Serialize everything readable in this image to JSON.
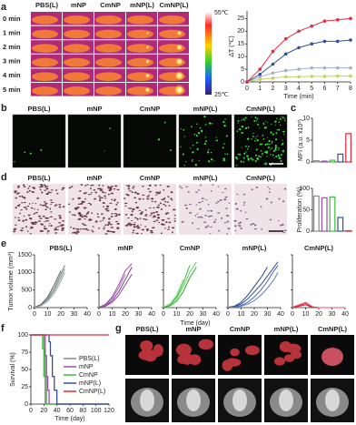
{
  "panel_labels": [
    "a",
    "b",
    "c",
    "d",
    "e",
    "f",
    "g"
  ],
  "groups": [
    {
      "name": "PBS(L)",
      "color": "#8c8c8c"
    },
    {
      "name": "mNP",
      "color": "#9b4fa8"
    },
    {
      "name": "CmNP",
      "color": "#3dbb3d"
    },
    {
      "name": "mNP(L)",
      "color": "#34509a"
    },
    {
      "name": "CmNP(L)",
      "color": "#e8283c"
    }
  ],
  "panel_a": {
    "times": [
      "0 min",
      "1 min",
      "2 min",
      "3 min",
      "4 min",
      "5 min"
    ],
    "scale_max": "55℃",
    "scale_min": "25℃"
  },
  "panel_e": {
    "y_label": "Tumor volume (mm³)",
    "x_label": "Time (day)"
  },
  "chart_data": [
    {
      "type": "line",
      "x_label": "Time (min)",
      "y_label": "ΔT (℃)",
      "markers": true,
      "x": [
        0,
        1,
        2,
        3,
        4,
        5,
        6,
        7,
        8
      ],
      "xlim": [
        0,
        8
      ],
      "xticks": [
        0,
        1,
        2,
        3,
        4,
        5,
        6,
        7,
        8
      ],
      "ylim": [
        0,
        28
      ],
      "yticks": [
        0,
        5,
        10,
        15,
        20,
        25
      ],
      "series": [
        {
          "color": "#9fb0c8",
          "values": [
            0,
            2,
            3.5,
            4.5,
            5,
            5.5,
            5.5,
            5.5,
            5.5
          ]
        },
        {
          "color": "#c8d060",
          "values": [
            0,
            1,
            1.5,
            2,
            2,
            2.2,
            2.2,
            2.3,
            2.3
          ]
        },
        {
          "color": "#34509a",
          "values": [
            0,
            3,
            7,
            11,
            13.5,
            15,
            16,
            16,
            16.5
          ]
        },
        {
          "color": "#e8283c",
          "values": [
            0,
            5,
            12,
            17,
            20,
            22,
            24,
            24.5,
            25
          ]
        }
      ]
    },
    {
      "type": "bar",
      "y_label": "MFI (a.u. x10³)",
      "ylim": [
        0,
        10
      ],
      "yticks": [
        0,
        5,
        10
      ],
      "values": [
        0.3,
        0.2,
        0.4,
        1.8,
        6.5
      ],
      "colors": [
        "#8c8c8c",
        "#9b4fa8",
        "#3dbb3d",
        "#34509a",
        "#e8283c"
      ]
    },
    {
      "type": "bar",
      "y_label": "Proliferation (%)",
      "ylim": [
        0,
        100
      ],
      "yticks": [
        0,
        50,
        100
      ],
      "values": [
        82,
        78,
        80,
        32,
        1
      ],
      "colors": [
        "#8c8c8c",
        "#9b4fa8",
        "#3dbb3d",
        "#34509a",
        "#e8283c"
      ]
    },
    {
      "type": "line",
      "title": "PBS(L)",
      "x": [
        0,
        5,
        10,
        15,
        20,
        23
      ],
      "xlim": [
        0,
        40
      ],
      "xticks": [
        0,
        10,
        20,
        30,
        40
      ],
      "ylim": [
        0,
        1500
      ],
      "yticks": [
        0,
        500,
        1000,
        1500
      ],
      "series": [
        {
          "color": "#6f7f7f",
          "values": [
            10,
            80,
            250,
            550,
            950,
            1200
          ]
        },
        {
          "color": "#8a9898",
          "values": [
            10,
            60,
            200,
            480,
            850,
            1100
          ]
        },
        {
          "color": "#5a6868",
          "values": [
            10,
            90,
            300,
            650,
            1050,
            null
          ]
        },
        {
          "color": "#9aa8a8",
          "values": [
            10,
            50,
            180,
            400,
            750,
            1000
          ]
        }
      ]
    },
    {
      "type": "line",
      "title": "mNP",
      "x": [
        0,
        5,
        10,
        15,
        20,
        25
      ],
      "xlim": [
        0,
        40
      ],
      "xticks": [
        0,
        10,
        20,
        30,
        40
      ],
      "ylim": [
        0,
        1500
      ],
      "yticks": [
        0,
        500,
        1000,
        1500
      ],
      "series": [
        {
          "color": "#9b4fa8",
          "values": [
            10,
            100,
            300,
            650,
            1050,
            1250
          ]
        },
        {
          "color": "#7a3a88",
          "values": [
            10,
            60,
            200,
            450,
            800,
            1150
          ]
        },
        {
          "color": "#b36abf",
          "values": [
            10,
            80,
            260,
            560,
            950,
            null
          ]
        },
        {
          "color": "#8a4598",
          "values": [
            10,
            40,
            150,
            350,
            650,
            950
          ]
        }
      ]
    },
    {
      "type": "line",
      "title": "CmNP",
      "x": [
        0,
        5,
        10,
        15,
        20,
        25
      ],
      "xlim": [
        0,
        40
      ],
      "xticks": [
        0,
        10,
        20,
        30,
        40
      ],
      "ylim": [
        0,
        1500
      ],
      "yticks": [
        0,
        500,
        1000,
        1500
      ],
      "series": [
        {
          "color": "#3dbb3d",
          "values": [
            10,
            90,
            300,
            700,
            1200,
            null
          ]
        },
        {
          "color": "#5fd05f",
          "values": [
            10,
            70,
            250,
            600,
            1000,
            1300
          ]
        },
        {
          "color": "#2ea82e",
          "values": [
            10,
            50,
            180,
            450,
            850,
            1150
          ]
        },
        {
          "color": "#7ade7a",
          "values": [
            10,
            110,
            350,
            800,
            null,
            null
          ]
        }
      ]
    },
    {
      "type": "line",
      "title": "mNP(L)",
      "x": [
        0,
        5,
        10,
        15,
        20,
        25,
        30,
        35,
        38
      ],
      "xlim": [
        0,
        40
      ],
      "xticks": [
        0,
        10,
        20,
        30,
        40
      ],
      "ylim": [
        0,
        1500
      ],
      "yticks": [
        0,
        500,
        1000,
        1500
      ],
      "series": [
        {
          "color": "#34509a",
          "values": [
            10,
            30,
            100,
            250,
            450,
            650,
            900,
            1150,
            1300
          ]
        },
        {
          "color": "#4a66b0",
          "values": [
            10,
            20,
            60,
            150,
            300,
            500,
            750,
            1050,
            1200
          ]
        },
        {
          "color": "#2a4080",
          "values": [
            10,
            40,
            150,
            350,
            600,
            850,
            1150,
            null,
            null
          ]
        },
        {
          "color": "#5b78c0",
          "values": [
            10,
            15,
            40,
            100,
            200,
            350,
            550,
            800,
            1000
          ]
        }
      ]
    },
    {
      "type": "line",
      "title": "CmNP(L)",
      "x": [
        0,
        5,
        10,
        15,
        20,
        30,
        40
      ],
      "xlim": [
        0,
        40
      ],
      "xticks": [
        0,
        10,
        20,
        30,
        40
      ],
      "ylim": [
        0,
        1500
      ],
      "yticks": [
        0,
        500,
        1000,
        1500
      ],
      "series": [
        {
          "color": "#e8283c",
          "values": [
            10,
            60,
            120,
            20,
            0,
            0,
            0
          ]
        },
        {
          "color": "#d01828",
          "values": [
            10,
            40,
            80,
            10,
            0,
            0,
            0
          ]
        },
        {
          "color": "#f05060",
          "values": [
            10,
            80,
            150,
            30,
            0,
            0,
            0
          ]
        }
      ]
    },
    {
      "type": "line",
      "step": true,
      "x_label": "Time (day)",
      "y_label": "Survival (%)",
      "x": [
        0,
        18,
        20,
        22,
        24,
        26,
        28,
        30,
        33,
        36,
        40,
        120
      ],
      "xlim": [
        0,
        120
      ],
      "xticks": [
        0,
        20,
        40,
        60,
        80,
        100,
        120
      ],
      "ylim": [
        0,
        100
      ],
      "yticks": [
        0,
        25,
        50,
        75,
        100
      ],
      "series": [
        {
          "name": "PBS(L)",
          "color": "#8c8c8c",
          "values": [
            100,
            100,
            80,
            40,
            0,
            0,
            0,
            0,
            0,
            0,
            0,
            0
          ]
        },
        {
          "name": "mNP",
          "color": "#9b4fa8",
          "values": [
            100,
            100,
            100,
            70,
            40,
            20,
            0,
            0,
            0,
            0,
            0,
            0
          ]
        },
        {
          "name": "CmNP",
          "color": "#3dbb3d",
          "values": [
            100,
            80,
            40,
            0,
            0,
            0,
            0,
            0,
            0,
            0,
            0,
            0
          ]
        },
        {
          "name": "mNP(L)",
          "color": "#34509a",
          "values": [
            100,
            100,
            100,
            100,
            100,
            100,
            90,
            70,
            40,
            20,
            0,
            0
          ]
        },
        {
          "name": "CmNP(L)",
          "color": "#e8283c",
          "values": [
            100,
            100,
            100,
            100,
            100,
            100,
            100,
            100,
            100,
            100,
            100,
            100
          ]
        }
      ]
    }
  ]
}
